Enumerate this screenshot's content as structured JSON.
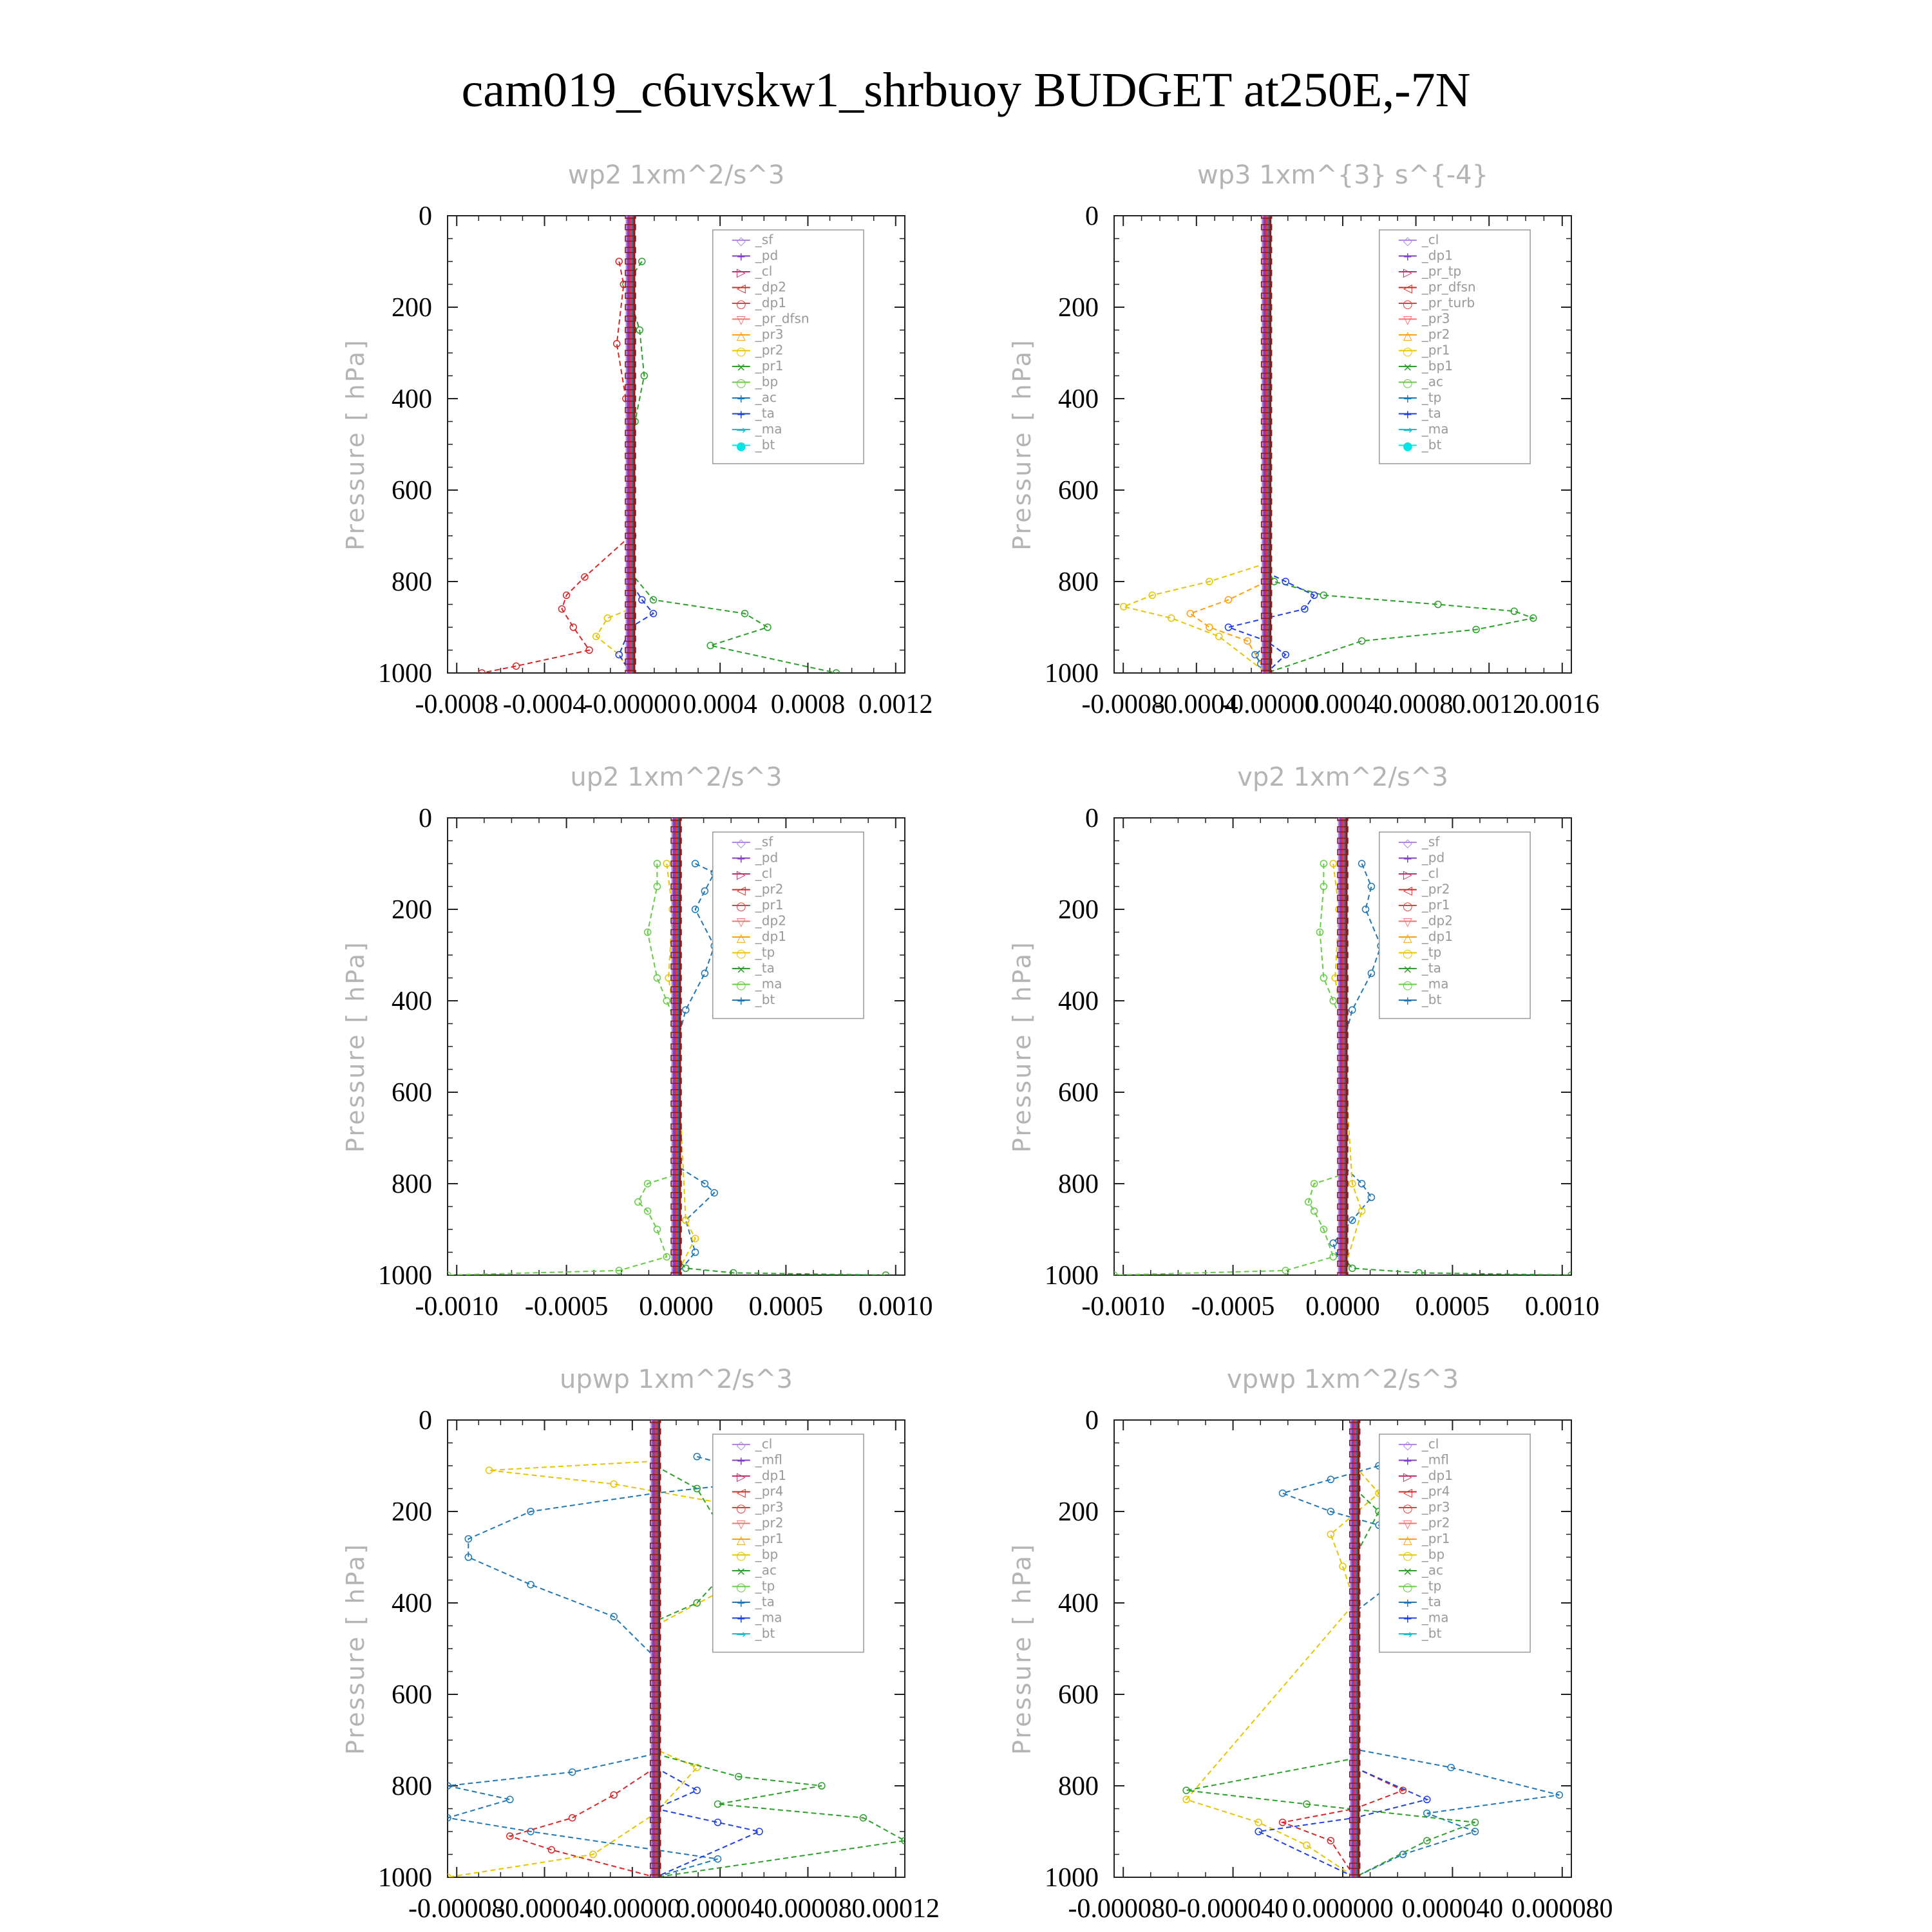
{
  "title": "cam019_c6uvskw1_shrbuoy  BUDGET at250E,-7N",
  "chart_data": [
    {
      "type": "line",
      "title": "wp2   1xm^2/s^3",
      "ylabel": "Pressure [ hPa]",
      "ylim": [
        0,
        1000
      ],
      "xlim": [
        -0.0008,
        0.0012
      ],
      "xticks": [
        "-0.0008",
        "-0.0004",
        "-0.00000",
        "0.0004",
        "0.0008",
        "0.0012"
      ],
      "yticks": [
        "0",
        "200",
        "400",
        "600",
        "800",
        "1000"
      ],
      "legend": [
        "_sf",
        "_pd",
        "_cl",
        "_dp2",
        "_dp1",
        "_pr_dfsn",
        "_pr3",
        "_pr2",
        "_pr1",
        "_bp",
        "_ac",
        "_ta",
        "_ma",
        "_bt"
      ],
      "series": [
        {
          "name": "_pr1",
          "color": "#2aa02a",
          "x": [
            5e-05,
            -2e-05,
            4e-05,
            6e-05,
            2e-05,
            1e-05,
            0.0,
            0.0001,
            0.0005,
            0.0006,
            0.00035,
            0.0009
          ],
          "y": [
            100,
            150,
            250,
            350,
            450,
            700,
            780,
            840,
            870,
            900,
            940,
            1000
          ]
        },
        {
          "name": "_dp1",
          "color": "#d62728",
          "x": [
            -5e-05,
            -3e-05,
            -6e-05,
            -2e-05,
            0.0,
            -0.0002,
            -0.00028,
            -0.0003,
            -0.00025,
            -0.00018,
            -0.0005,
            -0.00065
          ],
          "y": [
            100,
            150,
            280,
            400,
            700,
            790,
            830,
            860,
            900,
            950,
            985,
            1000
          ]
        },
        {
          "name": "_pr2",
          "color": "#e6c400",
          "x": [
            0.0,
            0.0,
            -0.0001,
            -0.00015,
            -5e-05,
            0.0
          ],
          "y": [
            700,
            860,
            880,
            920,
            960,
            1000
          ]
        },
        {
          "name": "_ta",
          "color": "#1f3fdf",
          "x": [
            0.0,
            0.0,
            5e-05,
            0.0001,
            0.0,
            -5e-05,
            0.0
          ],
          "y": [
            700,
            800,
            840,
            870,
            900,
            960,
            1000
          ]
        }
      ]
    },
    {
      "type": "line",
      "title": "wp3   1xm^{3} s^{-4}",
      "ylabel": "Pressure [ hPa]",
      "ylim": [
        0,
        1000
      ],
      "xlim": [
        -0.0008,
        0.0016
      ],
      "xticks": [
        "-0.0008",
        "-0.0004",
        "-0.00000",
        "0.0004",
        "0.0008",
        "0.0012",
        "0.0016"
      ],
      "yticks": [
        "0",
        "200",
        "400",
        "600",
        "800",
        "1000"
      ],
      "legend": [
        "_cl",
        "_dp1",
        "_pr_tp",
        "_pr_dfsn",
        "_pr_turb",
        "_pr3",
        "_pr2",
        "_pr1",
        "_bp1",
        "_ac",
        "_tp",
        "_ta",
        "_ma",
        "_bt"
      ],
      "series": [
        {
          "name": "_bp1",
          "color": "#2aa02a",
          "x": [
            0.0,
            4e-05,
            0.0003,
            0.0009,
            0.0013,
            0.0014,
            0.0011,
            0.0005,
            0.0
          ],
          "y": [
            770,
            800,
            830,
            850,
            865,
            880,
            905,
            930,
            1000
          ]
        },
        {
          "name": "_pr2",
          "color": "#e6c400",
          "x": [
            0.0,
            -0.0003,
            -0.0006,
            -0.00075,
            -0.0005,
            -0.00025,
            0.0
          ],
          "y": [
            760,
            800,
            830,
            855,
            880,
            920,
            1000
          ]
        },
        {
          "name": "_pr3",
          "color": "#ff9f0f",
          "x": [
            0.0,
            -0.0002,
            -0.0004,
            -0.0003,
            -0.0001,
            0.0
          ],
          "y": [
            800,
            840,
            870,
            900,
            930,
            1000
          ]
        },
        {
          "name": "_ta",
          "color": "#1f3fdf",
          "x": [
            0.0,
            0.0001,
            0.00025,
            0.0002,
            -0.0002,
            0.0,
            0.0001,
            0.0
          ],
          "y": [
            780,
            800,
            830,
            860,
            900,
            930,
            960,
            1000
          ]
        },
        {
          "name": "_tp",
          "color": "#1f77b4",
          "x": [
            0.0,
            -6e-05,
            -3e-05,
            0.0
          ],
          "y": [
            940,
            960,
            980,
            1000
          ]
        }
      ]
    },
    {
      "type": "line",
      "title": "up2   1xm^2/s^3",
      "ylabel": "Pressure [ hPa]",
      "ylim": [
        0,
        1000
      ],
      "xlim": [
        -0.0012,
        0.0012
      ],
      "xticks": [
        "-0.0010",
        "-0.0005",
        "0.0000",
        "0.0005",
        "0.0010"
      ],
      "yticks": [
        "0",
        "200",
        "400",
        "600",
        "800",
        "1000"
      ],
      "legend": [
        "_sf",
        "_pd",
        "_cl",
        "_pr2",
        "_pr1",
        "_dp2",
        "_dp1",
        "_tp",
        "_ta",
        "_ma",
        "_bt"
      ],
      "series": [
        {
          "name": "_tp",
          "color": "#1f77b4",
          "x": [
            0.0001,
            0.0002,
            0.00015,
            0.0001,
            0.0002,
            0.00015,
            5e-05,
            0.0,
            0.0,
            0.00015,
            0.0002,
            5e-05,
            0.0001,
            0.0
          ],
          "y": [
            100,
            120,
            160,
            200,
            280,
            340,
            420,
            500,
            760,
            800,
            820,
            880,
            950,
            1000
          ]
        },
        {
          "name": "_dp1",
          "color": "#66cc44",
          "x": [
            -0.0001,
            -0.0001,
            -0.00015,
            -0.0001,
            -5e-05,
            0.0,
            0.0,
            -0.00015,
            -0.0002,
            -0.00015,
            -0.0001,
            -5e-05,
            -0.0003,
            -0.0012
          ],
          "y": [
            100,
            150,
            250,
            350,
            400,
            450,
            780,
            800,
            840,
            860,
            900,
            960,
            990,
            1000
          ]
        },
        {
          "name": "_dp2",
          "color": "#2aa02a",
          "x": [
            0.0,
            5e-05,
            0.0003,
            0.0011
          ],
          "y": [
            960,
            985,
            995,
            1000
          ]
        },
        {
          "name": "_pr1",
          "color": "#e6c400",
          "x": [
            -5e-05,
            -2e-05,
            -4e-05,
            0.0,
            5e-05,
            0.0001,
            0.0
          ],
          "y": [
            100,
            200,
            350,
            460,
            880,
            920,
            1000
          ]
        }
      ]
    },
    {
      "type": "line",
      "title": "vp2   1xm^2/s^3",
      "ylabel": "Pressure [ hPa]",
      "ylim": [
        0,
        1000
      ],
      "xlim": [
        -0.0012,
        0.0012
      ],
      "xticks": [
        "-0.0010",
        "-0.0005",
        "0.0000",
        "0.0005",
        "0.0010"
      ],
      "yticks": [
        "0",
        "200",
        "400",
        "600",
        "800",
        "1000"
      ],
      "legend": [
        "_sf",
        "_pd",
        "_cl",
        "_pr2",
        "_pr1",
        "_dp2",
        "_dp1",
        "_tp",
        "_ta",
        "_ma",
        "_bt"
      ],
      "series": [
        {
          "name": "_tp",
          "color": "#1f77b4",
          "x": [
            0.0001,
            0.00015,
            0.00012,
            0.0002,
            0.00015,
            5e-05,
            0.0,
            0.0,
            0.0001,
            0.00015,
            5e-05,
            -5e-05,
            0.0
          ],
          "y": [
            100,
            150,
            200,
            280,
            340,
            420,
            500,
            760,
            800,
            830,
            880,
            930,
            1000
          ]
        },
        {
          "name": "_dp1",
          "color": "#66cc44",
          "x": [
            -0.0001,
            -0.0001,
            -0.00012,
            -0.0001,
            -5e-05,
            0.0,
            0.0,
            -0.00015,
            -0.00018,
            -0.00015,
            -0.0001,
            -5e-05,
            -0.0003,
            -0.0012
          ],
          "y": [
            100,
            150,
            250,
            350,
            400,
            450,
            780,
            800,
            840,
            860,
            900,
            960,
            990,
            1000
          ]
        },
        {
          "name": "_dp2",
          "color": "#2aa02a",
          "x": [
            0.0,
            5e-05,
            0.0004,
            0.0012
          ],
          "y": [
            960,
            985,
            995,
            1000
          ]
        },
        {
          "name": "_pr1",
          "color": "#e6c400",
          "x": [
            -5e-05,
            -2e-05,
            -4e-05,
            0.0,
            5e-05,
            0.0001,
            0.0
          ],
          "y": [
            100,
            200,
            350,
            460,
            800,
            860,
            1000
          ]
        }
      ]
    },
    {
      "type": "line",
      "title": "upwp   1xm^2/s^3",
      "ylabel": "Pressure [ hPa]",
      "ylim": [
        0,
        1000
      ],
      "xlim": [
        -0.0001,
        0.00012
      ],
      "xticks": [
        "-0.00008",
        "-0.00004",
        "-0.00000",
        "0.00004",
        "0.00008",
        "0.00012"
      ],
      "yticks": [
        "0",
        "200",
        "400",
        "600",
        "800",
        "1000"
      ],
      "legend": [
        "_cl",
        "_mfl",
        "_dp1",
        "_pr4",
        "_pr3",
        "_pr2",
        "_pr1",
        "_bp",
        "_ac",
        "_tp",
        "_ta",
        "_ma",
        "_bt"
      ],
      "series": [
        {
          "name": "_tp",
          "color": "#1f77b4",
          "x": [
            2e-05,
            6e-05,
            0.0,
            -6e-05,
            -9e-05,
            -9e-05,
            -6e-05,
            -2e-05,
            0.0,
            0.0,
            -4e-05,
            -0.0001,
            -7e-05,
            -0.0001,
            -6e-05,
            3e-05,
            0.0
          ],
          "y": [
            80,
            130,
            160,
            200,
            260,
            300,
            360,
            430,
            520,
            730,
            770,
            800,
            830,
            870,
            900,
            960,
            1000
          ]
        },
        {
          "name": "_pr1",
          "color": "#e6c400",
          "x": [
            0.0,
            -8e-05,
            -2e-05,
            3e-05,
            6e-05,
            5e-05,
            0.0,
            0.0,
            2e-05,
            0.0,
            -3e-05,
            -0.0001
          ],
          "y": [
            90,
            110,
            140,
            180,
            260,
            330,
            450,
            720,
            760,
            860,
            950,
            1000
          ]
        },
        {
          "name": "_bp",
          "color": "#2aa02a",
          "x": [
            0.0,
            2e-05,
            4e-05,
            2e-05,
            0.0,
            0.0,
            4e-05,
            8e-05,
            3e-05,
            0.0001,
            0.00012,
            0.0
          ],
          "y": [
            100,
            150,
            300,
            400,
            440,
            730,
            780,
            800,
            840,
            870,
            920,
            1000
          ]
        },
        {
          "name": "_pr4",
          "color": "#d62728",
          "x": [
            0.0,
            -2e-05,
            -4e-05,
            -7e-05,
            -5e-05,
            0.0
          ],
          "y": [
            760,
            820,
            870,
            910,
            940,
            1000
          ]
        },
        {
          "name": "_ta",
          "color": "#1f3fdf",
          "x": [
            0.0,
            2e-05,
            0.0,
            3e-05,
            5e-05,
            0.0
          ],
          "y": [
            760,
            810,
            850,
            880,
            900,
            1000
          ]
        }
      ]
    },
    {
      "type": "line",
      "title": "vpwp   1xm^2/s^3",
      "ylabel": "Pressure [ hPa]",
      "ylim": [
        0,
        1000
      ],
      "xlim": [
        -0.0001,
        9e-05
      ],
      "xticks": [
        "-0.000080",
        "-0.000040",
        "0.000000",
        "0.000040",
        "0.000080"
      ],
      "yticks": [
        "0",
        "200",
        "400",
        "600",
        "800",
        "1000"
      ],
      "legend": [
        "_cl",
        "_mfl",
        "_dp1",
        "_pr4",
        "_pr3",
        "_pr2",
        "_pr1",
        "_bp",
        "_ac",
        "_tp",
        "_ta",
        "_ma",
        "_bt"
      ],
      "series": [
        {
          "name": "_tp",
          "color": "#1f77b4",
          "x": [
            1e-05,
            -1e-05,
            -3e-05,
            -1e-05,
            1e-05,
            2e-05,
            1.5e-05,
            0.0,
            0.0,
            4e-05,
            8.5e-05,
            3e-05,
            5e-05,
            2e-05,
            0.0
          ],
          "y": [
            100,
            130,
            160,
            200,
            230,
            290,
            360,
            420,
            720,
            760,
            820,
            860,
            900,
            950,
            1000
          ]
        },
        {
          "name": "_pr1",
          "color": "#e6c400",
          "x": [
            0.0,
            1e-05,
            -1e-05,
            -5e-06,
            0.0,
            -7e-05,
            -4e-05,
            -2e-05,
            0.0
          ],
          "y": [
            100,
            160,
            250,
            320,
            400,
            830,
            880,
            930,
            1000
          ]
        },
        {
          "name": "_bp",
          "color": "#2aa02a",
          "x": [
            0.0,
            1e-05,
            0.0,
            0.0,
            -7e-05,
            -2e-05,
            5e-05,
            3e-05,
            0.0
          ],
          "y": [
            150,
            200,
            300,
            740,
            810,
            840,
            880,
            920,
            1000
          ]
        },
        {
          "name": "_pr4",
          "color": "#d62728",
          "x": [
            0.0,
            2e-05,
            0.0,
            -3e-05,
            -1e-05,
            0.0
          ],
          "y": [
            760,
            810,
            850,
            880,
            920,
            1000
          ]
        },
        {
          "name": "_ta",
          "color": "#1f3fdf",
          "x": [
            0.0,
            3e-05,
            0.0,
            -4e-05,
            0.0
          ],
          "y": [
            760,
            830,
            870,
            900,
            1000
          ]
        }
      ]
    }
  ]
}
